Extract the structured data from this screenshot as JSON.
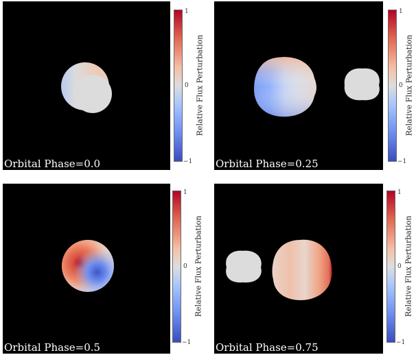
{
  "colorbar": {
    "title": "Relative Flux Perturbation",
    "tick_max": "1",
    "tick_mid": "0",
    "tick_min": "−1",
    "colormap": [
      "#3b4cc0",
      "#dddddd",
      "#b40426"
    ]
  },
  "panels": [
    {
      "label": "Orbital Phase=0.0"
    },
    {
      "label": "Orbital Phase=0.25"
    },
    {
      "label": "Orbital Phase=0.5"
    },
    {
      "label": "Orbital Phase=0.75"
    }
  ],
  "companion_color": "#dcdcdc",
  "background_color": "#000000"
}
